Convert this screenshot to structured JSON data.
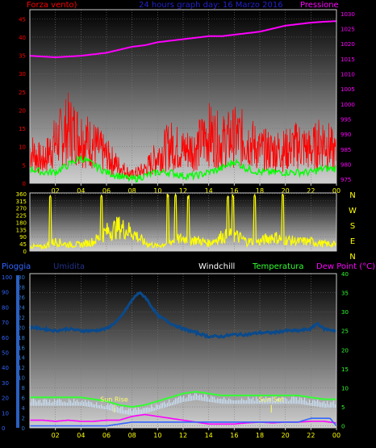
{
  "header": {
    "left_label": "Forza vento)",
    "title": "24 hours graph day: 16 Marzo 2016",
    "right_label": "Pressione"
  },
  "colors": {
    "wind": "#ff0000",
    "gust_avg": "#00ff00",
    "pressure": "#ff00ff",
    "direction": "#ffff00",
    "humidity": "#0a4a8c",
    "temperature": "#33ff33",
    "dewpoint": "#ff00ff",
    "rain": "#3366ff",
    "windchill": "#ffffff",
    "label_rain": "#3366ff",
    "label_humidity": "#223388",
    "label_windchill": "#ffffff",
    "label_temp": "#33ff33",
    "label_dew": "#ff00ff"
  },
  "x_ticks": [
    "02",
    "04",
    "06",
    "08",
    "10",
    "12",
    "14",
    "16",
    "18",
    "20",
    "22",
    "00"
  ],
  "compass": [
    "N",
    "W",
    "S",
    "E",
    "N"
  ],
  "bottom_labels": {
    "rain": "Pioggia",
    "humidity": "Umidita",
    "windchill": "Windchill",
    "temperature": "Temperatura",
    "dewpoint": "Dew Point (°C)"
  },
  "sun": {
    "rise": "Sun Rise",
    "set": "Sun Set"
  },
  "chart_data": [
    {
      "type": "line",
      "title": "24 hours graph day: 16 Marzo 2016",
      "x_unit": "hour",
      "x_range": [
        0,
        24
      ],
      "left_axis": {
        "label": "Forza vento)",
        "ticks": [
          0,
          5,
          10,
          15,
          20,
          25,
          30,
          35,
          40,
          45
        ],
        "range": [
          0,
          47.5
        ]
      },
      "right_axis": {
        "label": "Pressione",
        "ticks": [
          975,
          980,
          985,
          990,
          995,
          1000,
          1005,
          1010,
          1015,
          1020,
          1025,
          1030
        ],
        "range": [
          973.7,
          1031.3
        ]
      },
      "series": [
        {
          "axis": "right",
          "color": "#ff00ff",
          "x": [
            0,
            2,
            4,
            5,
            6,
            7,
            8,
            9,
            10,
            11,
            12,
            13,
            14,
            15,
            16,
            17,
            18,
            19,
            20,
            21,
            22,
            23,
            24
          ],
          "values": [
            1016.0,
            1015.5,
            1016.0,
            1016.5,
            1017.0,
            1018.0,
            1019.0,
            1019.5,
            1020.5,
            1021.0,
            1021.5,
            1022.0,
            1022.5,
            1022.5,
            1023.0,
            1023.5,
            1024.0,
            1025.0,
            1026.0,
            1026.5,
            1027.0,
            1027.3,
            1027.5
          ]
        },
        {
          "axis": "left",
          "color": "#00ff00",
          "x": [
            0,
            1,
            2,
            3,
            4,
            5,
            6,
            7,
            8,
            9,
            10,
            11,
            12,
            13,
            14,
            15,
            16,
            17,
            18,
            19,
            20,
            21,
            22,
            23,
            24
          ],
          "values": [
            4,
            3,
            3,
            5,
            7,
            5,
            3,
            2,
            1,
            2,
            3,
            3,
            2,
            2,
            3,
            4,
            6,
            4,
            3,
            3,
            3,
            3,
            3,
            4,
            4
          ]
        },
        {
          "axis": "left",
          "color": "#ff0000",
          "x": [
            0,
            1,
            2,
            3,
            4,
            5,
            6,
            7,
            8,
            9,
            10,
            11,
            12,
            13,
            14,
            15,
            16,
            17,
            18,
            19,
            20,
            21,
            22,
            23,
            24
          ],
          "values": [
            12,
            8,
            15,
            20,
            17,
            14,
            10,
            6,
            3,
            5,
            10,
            14,
            12,
            13,
            18,
            15,
            17,
            16,
            12,
            12,
            12,
            14,
            12,
            16,
            10
          ]
        }
      ]
    },
    {
      "type": "line",
      "title": "",
      "x_unit": "hour",
      "x_range": [
        0,
        24
      ],
      "left_axis": {
        "label": "",
        "ticks": [
          0,
          45,
          90,
          135,
          180,
          225,
          270,
          315,
          360
        ],
        "range": [
          0,
          365
        ]
      },
      "right_axis": {
        "label": "",
        "ticks": [
          "N",
          "W",
          "S",
          "E",
          "N"
        ]
      },
      "series": [
        {
          "color": "#ffff00",
          "x": [
            0,
            1,
            2,
            3,
            4,
            5,
            6,
            7,
            8,
            9,
            10,
            11,
            12,
            13,
            14,
            15,
            16,
            17,
            18,
            19,
            20,
            21,
            22,
            23,
            24
          ],
          "values": [
            30,
            25,
            60,
            40,
            40,
            60,
            120,
            150,
            120,
            50,
            30,
            60,
            80,
            70,
            50,
            90,
            100,
            60,
            60,
            90,
            70,
            60,
            60,
            45,
            40
          ]
        }
      ]
    },
    {
      "type": "line",
      "title": "",
      "x_unit": "hour",
      "x_range": [
        0,
        24
      ],
      "left_axis_rain": {
        "label": "Pioggia",
        "ticks": [
          0,
          10,
          20,
          30,
          40,
          50,
          60,
          70,
          80,
          90,
          100
        ]
      },
      "left_axis_humidity": {
        "label": "Umidita",
        "ticks": [
          0,
          2,
          4,
          6,
          8,
          10,
          12,
          14,
          16,
          18,
          20,
          22,
          24,
          26,
          28,
          30
        ]
      },
      "right_axis": {
        "label": "Dew Point (°C)",
        "ticks": [
          0,
          5,
          10,
          15,
          20,
          25,
          30,
          35,
          40
        ],
        "range": [
          -0.5,
          40
        ]
      },
      "series": [
        {
          "color": "#0a4a8c",
          "x": [
            0,
            1,
            2,
            3,
            4,
            5,
            6,
            7,
            8,
            8.5,
            9,
            10,
            11,
            12,
            13,
            14,
            15,
            16,
            17,
            18,
            19,
            20,
            21,
            22,
            22.5,
            23,
            24
          ],
          "values": [
            26,
            25.5,
            25,
            25.5,
            25,
            25,
            25.5,
            28,
            33,
            35,
            34,
            29,
            27,
            25.5,
            24.5,
            23.5,
            23.5,
            24,
            24,
            24.5,
            24.5,
            25,
            25,
            25.5,
            27,
            25.5,
            25
          ]
        },
        {
          "color": "#33ff33",
          "x": [
            0,
            1,
            2,
            3,
            4,
            5,
            6,
            7,
            8,
            9,
            10,
            11,
            12,
            13,
            14,
            15,
            16,
            17,
            18,
            19,
            20,
            21,
            22,
            23,
            24
          ],
          "values": [
            7.5,
            7.5,
            7.5,
            7.5,
            7.5,
            7,
            6.5,
            5.5,
            5,
            5.5,
            6.5,
            7.5,
            8.5,
            9,
            8.5,
            8,
            8,
            8,
            8,
            8,
            8,
            8,
            7.5,
            7,
            7
          ]
        },
        {
          "color": "#ff00ff",
          "x": [
            0,
            1,
            2,
            3,
            4,
            5,
            6,
            7,
            8,
            9,
            10,
            11,
            12,
            13,
            14,
            15,
            16,
            17,
            18,
            19,
            20,
            21,
            22,
            23,
            24
          ],
          "values": [
            1.5,
            1.5,
            1.2,
            1.5,
            1.2,
            1.2,
            1.5,
            1.5,
            2.5,
            3,
            2.5,
            2,
            1.5,
            1,
            0.5,
            0.5,
            0.5,
            0.8,
            1,
            0.8,
            1,
            1,
            1.2,
            1.2,
            0.8
          ]
        },
        {
          "color": "#3366ff",
          "x": [
            0,
            2,
            4,
            6,
            7,
            8,
            9,
            10,
            12,
            14,
            16,
            18,
            20,
            21,
            22,
            23,
            23.5,
            24
          ],
          "values": [
            0,
            0,
            0,
            0,
            0.5,
            1,
            1,
            1,
            1,
            1,
            1,
            1,
            1,
            1,
            2,
            2,
            2,
            0
          ]
        }
      ]
    }
  ]
}
